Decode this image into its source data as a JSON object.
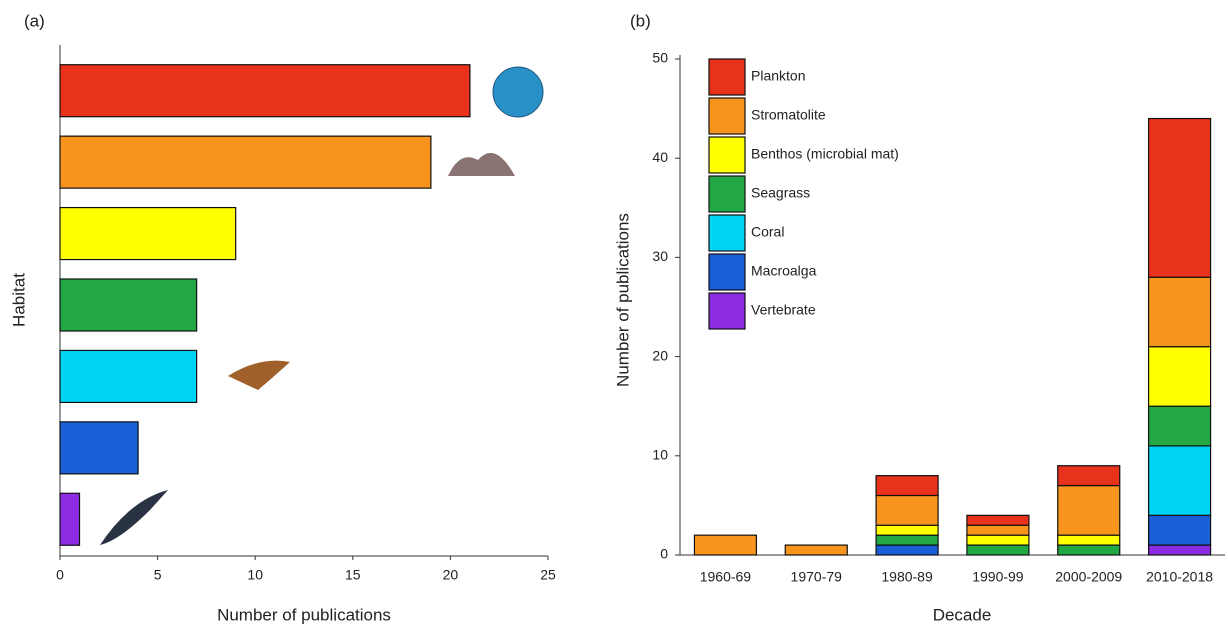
{
  "chart_data": [
    {
      "type": "barh",
      "panel": "(a)",
      "x_label": "Number of publications",
      "y_label": "Habitat",
      "values": [
        21,
        19,
        9,
        7,
        7,
        4,
        1
      ],
      "colors": [
        "#e8321c",
        "#f7941d",
        "#ffff00",
        "#22a845",
        "#00d4f5",
        "#1a5fd6",
        "#8b2be2"
      ],
      "xlim": [
        0,
        25
      ],
      "xticks": [
        0,
        5,
        10,
        15,
        20,
        25
      ]
    },
    {
      "type": "stacked",
      "panel": "(b)",
      "x_label": "Decade",
      "y_label": "Number of publications",
      "categories": [
        "1960-69",
        "1970-79",
        "1980-89",
        "1990-99",
        "2000-2009",
        "2010-2018"
      ],
      "series": [
        {
          "name": "Plankton",
          "color": "#e8321c",
          "values": [
            0,
            0,
            2,
            1,
            2,
            16
          ]
        },
        {
          "name": "Stromatolite",
          "color": "#f7941d",
          "values": [
            2,
            1,
            3,
            1,
            5,
            7
          ]
        },
        {
          "name": "Benthos (microbial mat)",
          "color": "#ffff00",
          "values": [
            0,
            0,
            1,
            1,
            1,
            6
          ]
        },
        {
          "name": "Seagrass",
          "color": "#22a845",
          "values": [
            0,
            0,
            1,
            1,
            1,
            4
          ]
        },
        {
          "name": "Coral",
          "color": "#00d4f5",
          "values": [
            0,
            0,
            0,
            0,
            0,
            7
          ]
        },
        {
          "name": "Macroalga",
          "color": "#1a5fd6",
          "values": [
            0,
            0,
            1,
            0,
            0,
            3
          ]
        },
        {
          "name": "Vertebrate",
          "color": "#8b2be2",
          "values": [
            0,
            0,
            0,
            0,
            0,
            1
          ]
        }
      ],
      "ylim": [
        0,
        50
      ],
      "yticks": [
        0,
        10,
        20,
        30,
        40,
        50
      ],
      "legend": "top-left"
    }
  ]
}
